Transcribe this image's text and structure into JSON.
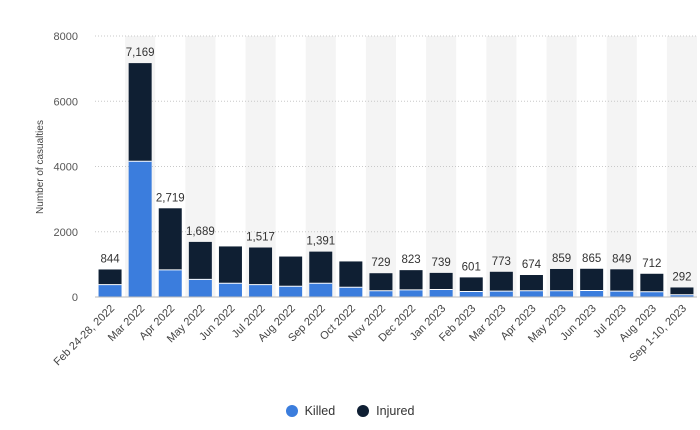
{
  "chart_data": {
    "type": "bar",
    "stacked": true,
    "categories": [
      "Feb 24-28, 2022",
      "Mar 2022",
      "Apr 2022",
      "May 2022",
      "Jun 2022",
      "Jul 2022",
      "Aug 2022",
      "Sep 2022",
      "Oct 2022",
      "Nov 2022",
      "Dec 2022",
      "Jan 2023",
      "Feb 2023",
      "Mar 2023",
      "Apr 2023",
      "May 2023",
      "Jun 2023",
      "Jul 2023",
      "Aug 2023",
      "Sep 1-10, 2023"
    ],
    "series": [
      {
        "name": "Killed",
        "color": "#3b7ddd",
        "values": [
          380,
          4160,
          830,
          540,
          420,
          380,
          330,
          420,
          300,
          190,
          220,
          230,
          170,
          180,
          190,
          190,
          200,
          180,
          160,
          70
        ]
      },
      {
        "name": "Injured",
        "color": "#0f1f33",
        "values": [
          464,
          3009,
          1889,
          1149,
          1130,
          1137,
          910,
          971,
          790,
          539,
          603,
          509,
          431,
          593,
          484,
          669,
          665,
          669,
          552,
          222
        ]
      }
    ],
    "data_labels": [
      "844",
      "7,169",
      "2,719",
      "1,689",
      "",
      "1,517",
      "",
      "1,391",
      "",
      "729",
      "823",
      "739",
      "601",
      "773",
      "674",
      "859",
      "865",
      "849",
      "712",
      "292"
    ],
    "ylabel": "Number of casualties",
    "yticks": [
      "0",
      "2000",
      "4000",
      "6000",
      "8000"
    ],
    "ylim": [
      0,
      8000
    ],
    "grid": true,
    "legend_position": "bottom"
  },
  "legend": [
    {
      "label": "Killed",
      "color": "#3b7ddd"
    },
    {
      "label": "Injured",
      "color": "#0f1f33"
    }
  ]
}
